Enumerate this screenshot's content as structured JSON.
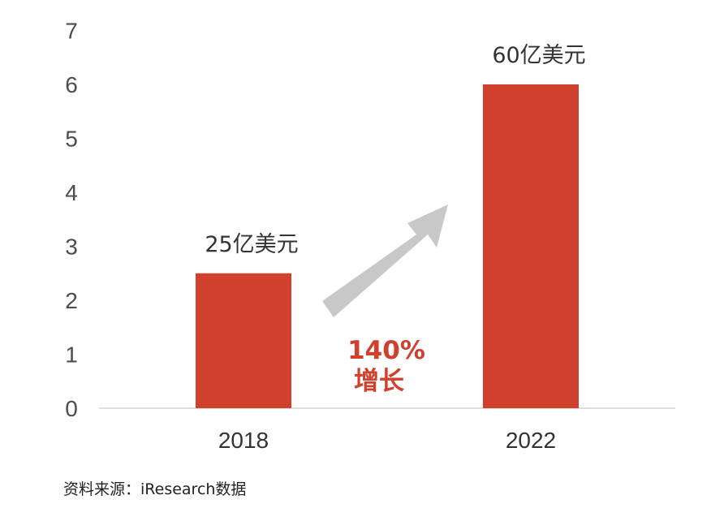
{
  "chart_data": {
    "type": "bar",
    "categories": [
      "2018",
      "2022"
    ],
    "values": [
      2.5,
      6.0
    ],
    "data_labels": [
      "25亿美元",
      "60亿美元"
    ],
    "ylim": [
      0,
      7
    ],
    "yticks": [
      "0",
      "1",
      "2",
      "3",
      "4",
      "5",
      "6",
      "7"
    ],
    "bar_color": "#cf412d",
    "grid": false,
    "annotation": {
      "arrow": "up-right",
      "arrow_color": "#c8c8c8",
      "text_line1": "140%",
      "text_line2": "增长",
      "color": "#d0402c"
    }
  },
  "source_text": "资料来源：iResearch数据"
}
